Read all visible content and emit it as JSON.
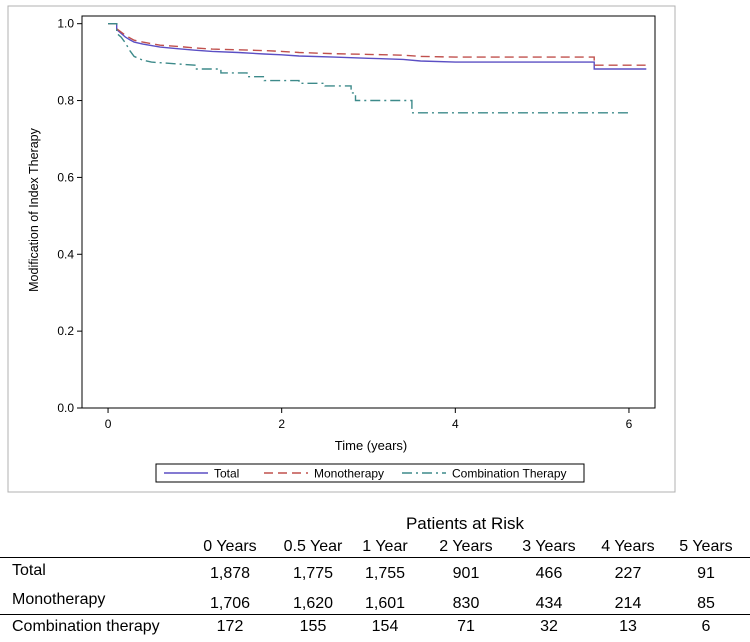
{
  "chart_data": {
    "type": "line",
    "subtype": "step (Kaplan-Meier)",
    "xlabel": "Time (years)",
    "ylabel": "Modification of Index Therapy",
    "xlim": [
      -0.3,
      6.3
    ],
    "ylim": [
      0.0,
      1.02
    ],
    "xticks": [
      0,
      2,
      4,
      6
    ],
    "yticks": [
      0.0,
      0.2,
      0.4,
      0.6,
      0.8,
      1.0
    ],
    "xtick_labels": [
      "0",
      "2",
      "4",
      "6"
    ],
    "ytick_labels": [
      "0.0",
      "0.2",
      "0.4",
      "0.6",
      "0.8",
      "1.0"
    ],
    "grid": false,
    "legend_position": "bottom",
    "series": [
      {
        "name": "Total",
        "color": "#5b4fc4",
        "dash": "solid",
        "points": [
          [
            0,
            1.0
          ],
          [
            0.1,
            1.0
          ],
          [
            0.1,
            0.985
          ],
          [
            0.15,
            0.975
          ],
          [
            0.2,
            0.965
          ],
          [
            0.25,
            0.958
          ],
          [
            0.3,
            0.952
          ],
          [
            0.4,
            0.947
          ],
          [
            0.5,
            0.943
          ],
          [
            0.6,
            0.939
          ],
          [
            0.8,
            0.935
          ],
          [
            1.0,
            0.931
          ],
          [
            1.2,
            0.928
          ],
          [
            1.5,
            0.925
          ],
          [
            1.8,
            0.921
          ],
          [
            2.0,
            0.919
          ],
          [
            2.2,
            0.916
          ],
          [
            2.6,
            0.913
          ],
          [
            3.0,
            0.91
          ],
          [
            3.4,
            0.907
          ],
          [
            3.6,
            0.903
          ],
          [
            4.0,
            0.9
          ],
          [
            5.0,
            0.9
          ],
          [
            5.6,
            0.9
          ],
          [
            5.6,
            0.882
          ],
          [
            6.2,
            0.882
          ]
        ]
      },
      {
        "name": "Monotherapy",
        "color": "#c0504d",
        "dash": "dashed",
        "points": [
          [
            0,
            1.0
          ],
          [
            0.1,
            1.0
          ],
          [
            0.1,
            0.987
          ],
          [
            0.15,
            0.978
          ],
          [
            0.2,
            0.97
          ],
          [
            0.25,
            0.963
          ],
          [
            0.3,
            0.957
          ],
          [
            0.4,
            0.952
          ],
          [
            0.5,
            0.948
          ],
          [
            0.6,
            0.944
          ],
          [
            0.8,
            0.941
          ],
          [
            1.0,
            0.937
          ],
          [
            1.2,
            0.934
          ],
          [
            1.5,
            0.932
          ],
          [
            1.8,
            0.93
          ],
          [
            2.0,
            0.928
          ],
          [
            2.2,
            0.925
          ],
          [
            2.6,
            0.922
          ],
          [
            3.0,
            0.92
          ],
          [
            3.4,
            0.918
          ],
          [
            3.6,
            0.915
          ],
          [
            4.0,
            0.913
          ],
          [
            5.0,
            0.913
          ],
          [
            5.6,
            0.913
          ],
          [
            5.6,
            0.892
          ],
          [
            6.2,
            0.892
          ]
        ]
      },
      {
        "name": "Combination Therapy",
        "color": "#3d8a8a",
        "dash": "dashdot",
        "points": [
          [
            0,
            1.0
          ],
          [
            0.1,
            1.0
          ],
          [
            0.1,
            0.975
          ],
          [
            0.15,
            0.965
          ],
          [
            0.2,
            0.95
          ],
          [
            0.25,
            0.93
          ],
          [
            0.3,
            0.915
          ],
          [
            0.4,
            0.905
          ],
          [
            0.5,
            0.9
          ],
          [
            1.0,
            0.892
          ],
          [
            1.0,
            0.882
          ],
          [
            1.3,
            0.882
          ],
          [
            1.3,
            0.872
          ],
          [
            1.6,
            0.872
          ],
          [
            1.6,
            0.862
          ],
          [
            1.8,
            0.862
          ],
          [
            1.8,
            0.852
          ],
          [
            2.2,
            0.852
          ],
          [
            2.2,
            0.845
          ],
          [
            2.5,
            0.845
          ],
          [
            2.5,
            0.838
          ],
          [
            2.8,
            0.838
          ],
          [
            2.8,
            0.82
          ],
          [
            2.85,
            0.82
          ],
          [
            2.85,
            0.8
          ],
          [
            3.5,
            0.8
          ],
          [
            3.5,
            0.768
          ],
          [
            6.0,
            0.768
          ]
        ]
      }
    ]
  },
  "risk_table": {
    "title": "Patients at Risk",
    "columns": [
      "0 Years",
      "0.5 Year",
      "1 Year",
      "2 Years",
      "3 Years",
      "4 Years",
      "5 Years"
    ],
    "rows": [
      {
        "label": "Total",
        "values": [
          "1,878",
          "1,775",
          "1,755",
          "901",
          "466",
          "227",
          "91"
        ]
      },
      {
        "label": "Monotherapy",
        "values": [
          "1,706",
          "1,620",
          "1,601",
          "830",
          "434",
          "214",
          "85"
        ]
      },
      {
        "label": "Combination therapy",
        "values": [
          "172",
          "155",
          "154",
          "71",
          "32",
          "13",
          "6"
        ]
      }
    ]
  }
}
